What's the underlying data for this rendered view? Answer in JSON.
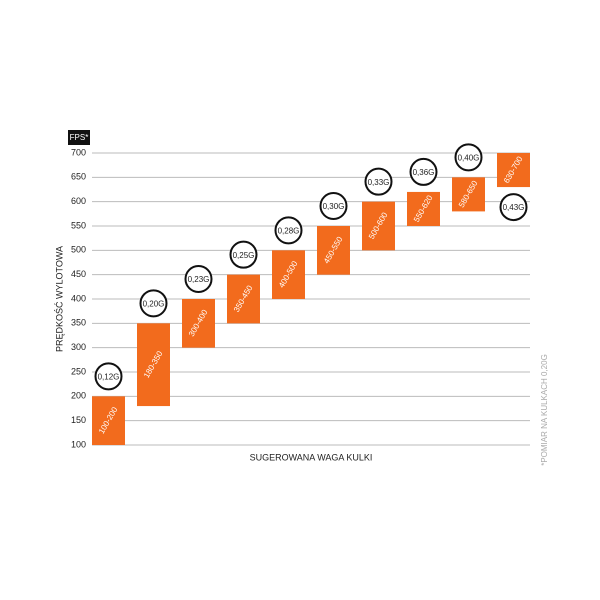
{
  "chart_data": {
    "type": "floating-bar",
    "y_label": "PRĘDKOŚĆ WYLOTOWA",
    "x_label": "SUGEROWANA WAGA KULKI",
    "unit": "FPS*",
    "note": "*POMIAR NA KULKACH 0,20G",
    "color": "#f26b1d",
    "ylim": [
      100,
      700
    ],
    "yticks": [
      100,
      150,
      200,
      250,
      300,
      350,
      400,
      450,
      500,
      550,
      600,
      650,
      700
    ],
    "grid": true,
    "bars": [
      {
        "low": 100,
        "high": 200,
        "label": "100-200",
        "weight": "0,12G"
      },
      {
        "low": 180,
        "high": 350,
        "label": "180-350",
        "weight": "0,20G"
      },
      {
        "low": 300,
        "high": 400,
        "label": "300-400",
        "weight": "0,23G"
      },
      {
        "low": 350,
        "high": 450,
        "label": "350-450",
        "weight": "0,25G"
      },
      {
        "low": 400,
        "high": 500,
        "label": "400-500",
        "weight": "0,28G"
      },
      {
        "low": 450,
        "high": 550,
        "label": "450-550",
        "weight": "0,30G"
      },
      {
        "low": 500,
        "high": 600,
        "label": "500-600",
        "weight": "0,33G"
      },
      {
        "low": 550,
        "high": 620,
        "label": "550-620",
        "weight": "0,36G"
      },
      {
        "low": 580,
        "high": 650,
        "label": "580-650",
        "weight": "0,40G"
      },
      {
        "low": 630,
        "high": 700,
        "label": "630-700",
        "weight": "0,43G"
      }
    ]
  }
}
